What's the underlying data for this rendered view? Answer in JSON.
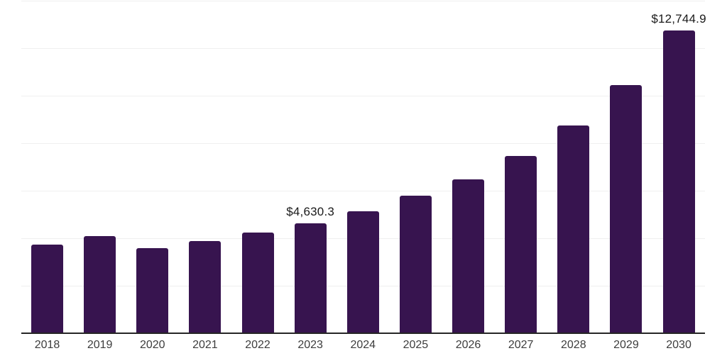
{
  "chart_data": {
    "type": "bar",
    "title": "",
    "xlabel": "",
    "ylabel": "",
    "categories": [
      "2018",
      "2019",
      "2020",
      "2021",
      "2022",
      "2023",
      "2024",
      "2025",
      "2026",
      "2027",
      "2028",
      "2029",
      "2030"
    ],
    "values": [
      3745,
      4105,
      3590,
      3880,
      4240,
      4630.3,
      5145,
      5790,
      6470,
      7465,
      8740,
      10450,
      12744.9
    ],
    "data_labels": [
      "",
      "",
      "",
      "",
      "",
      "$4,630.3",
      "",
      "",
      "",
      "",
      "",
      "",
      "$12,744.9"
    ],
    "ylim": [
      0,
      14000
    ],
    "grid_step": 2000,
    "grid": "horizontal",
    "legend_position": "none",
    "bar_color": "#37144F",
    "axis_line_color": "#262626",
    "gridline_color": "#efefef",
    "data_label_color": "#1a1a1a",
    "tick_label_color": "#3d3d3d"
  }
}
